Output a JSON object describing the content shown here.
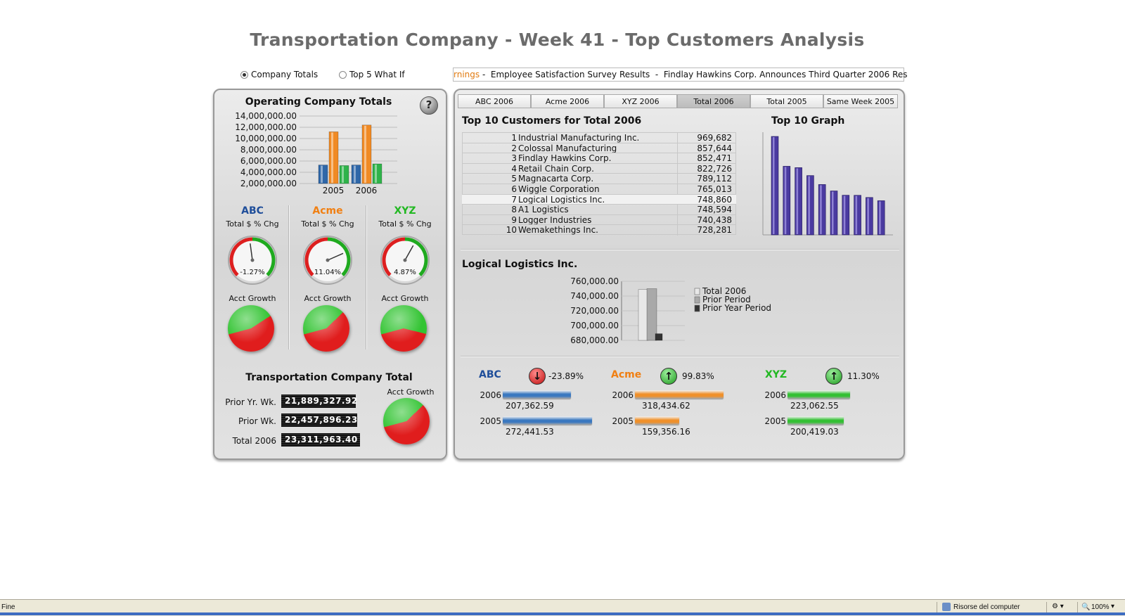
{
  "title": "Transportation Company - Week 41 - Top Customers Analysis",
  "view_options": [
    {
      "label": "Company Totals",
      "selected": true
    },
    {
      "label": "Top 5 What If",
      "selected": false
    }
  ],
  "ticker": {
    "highlight": "rnings",
    "text": " -  Employee Satisfaction Survey Results  -  Findlay Hawkins Corp. Announces Third Quarter 2006 Res"
  },
  "left_panel": {
    "title": "Operating Company Totals",
    "help_label": "?",
    "chart_data": {
      "type": "bar",
      "categories": [
        "2005",
        "2006"
      ],
      "yticks": [
        "14,000,000.00",
        "12,000,000.00",
        "10,000,000.00",
        "8,000,000.00",
        "6,000,000.00",
        "4,000,000.00",
        "2,000,000.00"
      ],
      "ylim": [
        2000000,
        14000000
      ],
      "series": [
        {
          "name": "ABC",
          "color": "#2f67a8",
          "values": [
            5300000,
            5300000
          ]
        },
        {
          "name": "Acme",
          "color": "#f08a24",
          "values": [
            11200000,
            12400000
          ]
        },
        {
          "name": "XYZ",
          "color": "#2fb34a",
          "values": [
            5200000,
            5500000
          ]
        }
      ]
    },
    "companies": [
      {
        "name": "ABC",
        "color": "#1f4e9a",
        "sub": "Total $ % Chg",
        "gauge_label": "-1.27%",
        "gauge_value": -1.27,
        "growth_label": "Acct Growth",
        "growth_green_pct": 45
      },
      {
        "name": "Acme",
        "color": "#f07f12",
        "sub": "Total $ % Chg",
        "gauge_label": "11.04%",
        "gauge_value": 11.04,
        "growth_label": "Acct Growth",
        "growth_green_pct": 42
      },
      {
        "name": "XYZ",
        "color": "#22b822",
        "sub": "Total $ % Chg",
        "gauge_label": "4.87%",
        "gauge_value": 4.87,
        "growth_label": "Acct Growth",
        "growth_green_pct": 58
      }
    ],
    "transport_total": {
      "title": "Transportation Company Total",
      "rows": [
        {
          "label": "Prior Yr. Wk.",
          "value": "21,889,327.92"
        },
        {
          "label": "Prior Wk.",
          "value": "22,457,896.23"
        },
        {
          "label": "Total 2006",
          "value": "23,311,963.40"
        }
      ],
      "growth_label": "Acct Growth",
      "growth_green_pct": 42
    }
  },
  "tabs": [
    {
      "label": "ABC 2006",
      "active": false
    },
    {
      "label": "Acme 2006",
      "active": false
    },
    {
      "label": "XYZ 2006",
      "active": false
    },
    {
      "label": "Total 2006",
      "active": true
    },
    {
      "label": "Total 2005",
      "active": false
    },
    {
      "label": "Same Week 2005",
      "active": false
    }
  ],
  "top10": {
    "title": "Top 10 Customers for Total 2006",
    "graph_title": "Top 10 Graph",
    "selected_rank": 7,
    "rows": [
      {
        "rank": "1",
        "name": "Industrial Manufacturing Inc.",
        "value": "969,682"
      },
      {
        "rank": "2",
        "name": "Colossal Manufacturing",
        "value": "857,644"
      },
      {
        "rank": "3",
        "name": "Findlay Hawkins Corp.",
        "value": "852,471"
      },
      {
        "rank": "4",
        "name": "Retail Chain Corp.",
        "value": "822,726"
      },
      {
        "rank": "5",
        "name": "Magnacarta Corp.",
        "value": "789,112"
      },
      {
        "rank": "6",
        "name": "Wiggle Corporation",
        "value": "765,013"
      },
      {
        "rank": "7",
        "name": "Logical Logistics Inc.",
        "value": "748,860"
      },
      {
        "rank": "8",
        "name": "A1 Logistics",
        "value": "748,594"
      },
      {
        "rank": "9",
        "name": "Logger Industries",
        "value": "740,438"
      },
      {
        "rank": "10",
        "name": "Wemakethings Inc.",
        "value": "728,281"
      }
    ],
    "graph_values": [
      969682,
      857644,
      852471,
      822726,
      789112,
      765013,
      748860,
      748594,
      740438,
      728281
    ],
    "graph_color": "#4a3aa0"
  },
  "customer_detail": {
    "title": "Logical Logistics Inc.",
    "chart_data": {
      "type": "bar",
      "yticks": [
        "760,000.00",
        "740,000.00",
        "720,000.00",
        "700,000.00",
        "680,000.00"
      ],
      "ylim": [
        680000,
        760000
      ],
      "series": [
        {
          "name": "Total 2006",
          "color": "#e8e8e8",
          "values": [
            748860
          ]
        },
        {
          "name": "Prior Period",
          "color": "#a9a9a9",
          "values": [
            750000
          ]
        },
        {
          "name": "Prior Year Period",
          "color": "#333333",
          "values": [
            689000
          ]
        }
      ]
    }
  },
  "company_compare": [
    {
      "name": "ABC",
      "color": "#1f4e9a",
      "direction": "down",
      "change": "-23.89%",
      "bar_color": "#3a78c0",
      "rows": [
        {
          "year": "2006",
          "value": "207,362.59",
          "fraction": 0.76
        },
        {
          "year": "2005",
          "value": "272,441.53",
          "fraction": 1.0
        }
      ]
    },
    {
      "name": "Acme",
      "color": "#f07f12",
      "direction": "up",
      "change": "99.83%",
      "bar_color": "#f0902a",
      "rows": [
        {
          "year": "2006",
          "value": "318,434.62",
          "fraction": 1.0
        },
        {
          "year": "2005",
          "value": "159,356.16",
          "fraction": 0.5
        }
      ]
    },
    {
      "name": "XYZ",
      "color": "#22b822",
      "direction": "up",
      "change": "11.30%",
      "bar_color": "#33c033",
      "rows": [
        {
          "year": "2006",
          "value": "223,062.55",
          "fraction": 1.0
        },
        {
          "year": "2005",
          "value": "200,419.03",
          "fraction": 0.9
        }
      ]
    }
  ],
  "statusbar": {
    "left": "Fine",
    "zone": "Risorse del computer",
    "zoom": "100%"
  }
}
